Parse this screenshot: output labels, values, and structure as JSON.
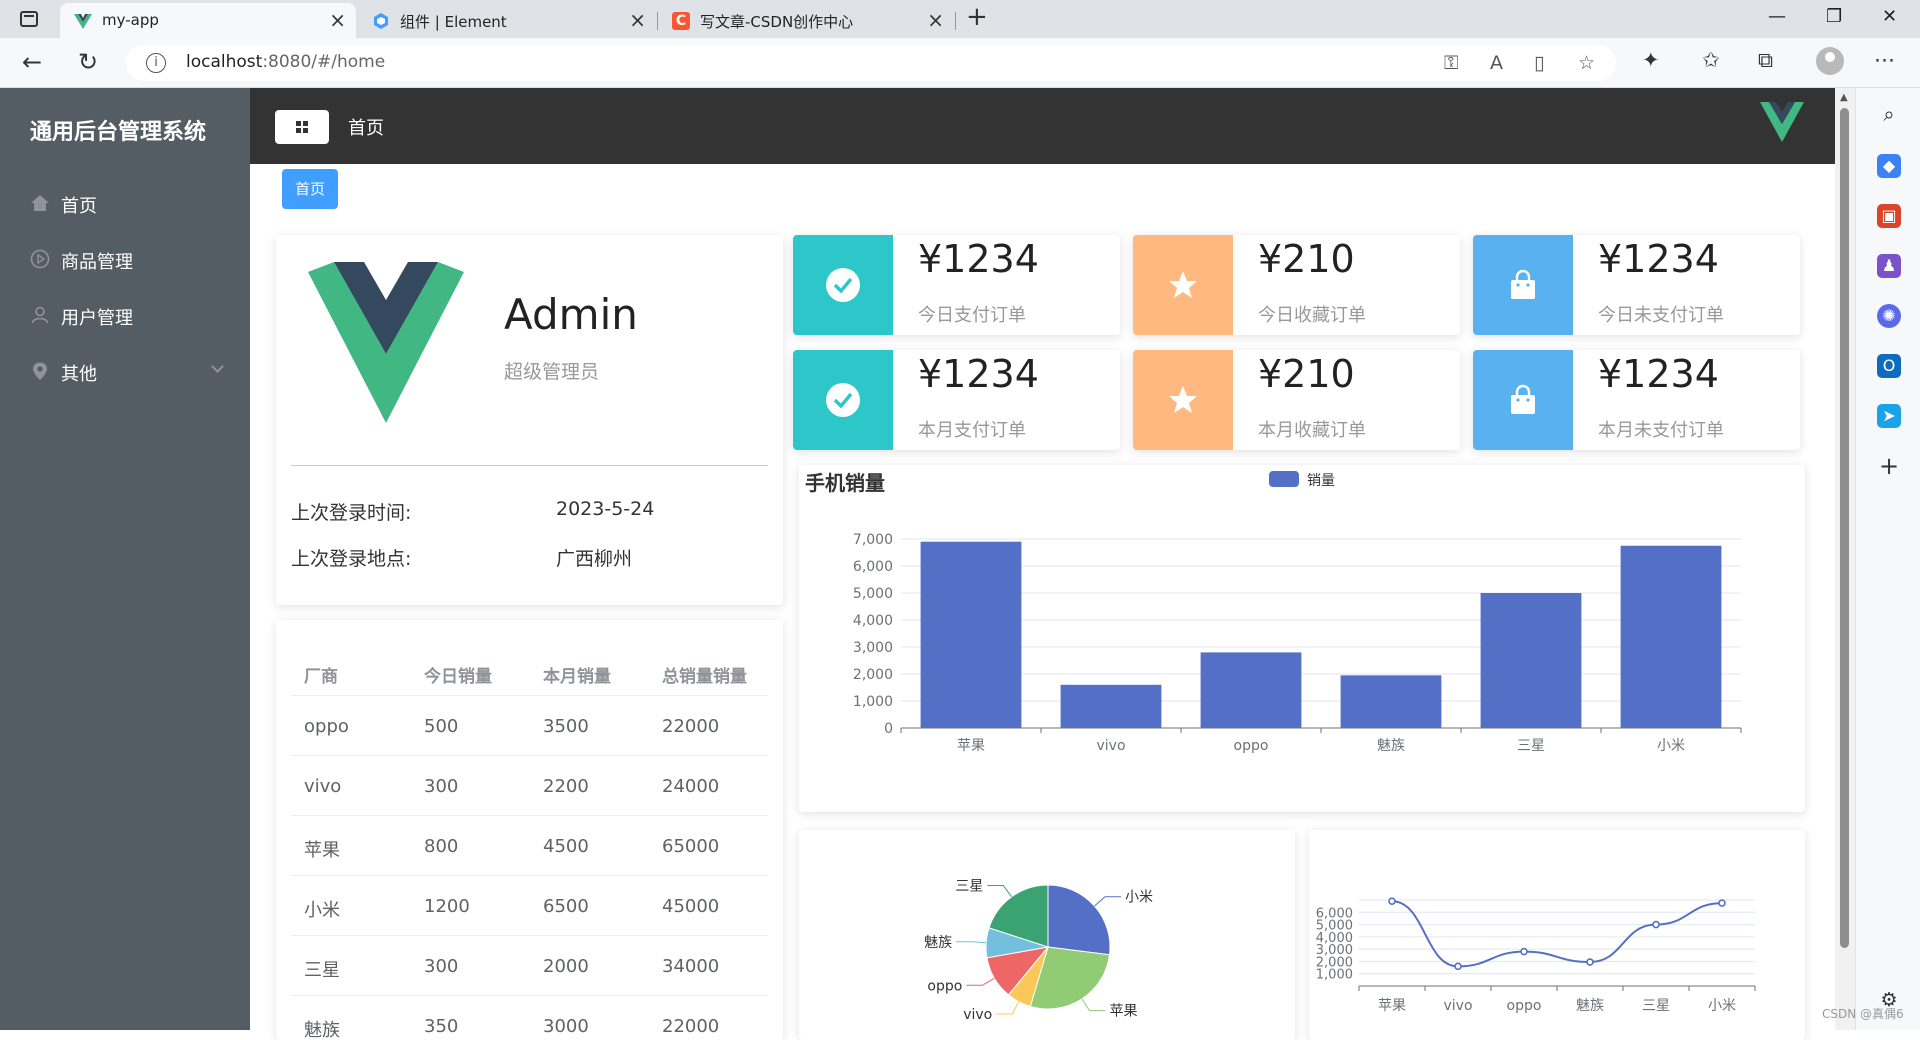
{
  "browser": {
    "tabs": [
      {
        "title": "my-app",
        "active": true
      },
      {
        "title": "组件 | Element",
        "active": false
      },
      {
        "title": "写文章-CSDN创作中心",
        "active": false
      }
    ],
    "url_host": "localhost",
    "url_rest": ":8080/#/home",
    "watermark": "CSDN @真偶6"
  },
  "sidebar": {
    "title": "通用后台管理系统",
    "items": [
      {
        "label": "首页",
        "icon": "home-icon"
      },
      {
        "label": "商品管理",
        "icon": "video-play-icon"
      },
      {
        "label": "用户管理",
        "icon": "user-icon"
      },
      {
        "label": "其他",
        "icon": "location-icon"
      }
    ]
  },
  "header": {
    "breadcrumb": "首页"
  },
  "tags": [
    "首页"
  ],
  "user": {
    "name": "Admin",
    "role": "超级管理员",
    "last_login_time_label": "上次登录时间:",
    "last_login_time": "2023-5-24",
    "last_login_place_label": "上次登录地点:",
    "last_login_place": "广西柳州"
  },
  "table": {
    "headers": [
      "厂商",
      "今日销量",
      "本月销量",
      "总销量销量"
    ],
    "rows": [
      [
        "oppo",
        "500",
        "3500",
        "22000"
      ],
      [
        "vivo",
        "300",
        "2200",
        "24000"
      ],
      [
        "苹果",
        "800",
        "4500",
        "65000"
      ],
      [
        "小米",
        "1200",
        "6500",
        "45000"
      ],
      [
        "三星",
        "300",
        "2000",
        "34000"
      ],
      [
        "魅族",
        "350",
        "3000",
        "22000"
      ]
    ]
  },
  "stats": [
    {
      "value": "¥1234",
      "label": "今日支付订单",
      "icon": "check-circle-icon",
      "color": "#2ec7c9"
    },
    {
      "value": "¥210",
      "label": "今日收藏订单",
      "icon": "star-icon",
      "color": "#ffb980"
    },
    {
      "value": "¥1234",
      "label": "今日未支付订单",
      "icon": "shopping-bag-icon",
      "color": "#5ab1ef"
    },
    {
      "value": "¥1234",
      "label": "本月支付订单",
      "icon": "check-circle-icon",
      "color": "#2ec7c9"
    },
    {
      "value": "¥210",
      "label": "本月收藏订单",
      "icon": "star-icon",
      "color": "#ffb980"
    },
    {
      "value": "¥1234",
      "label": "本月未支付订单",
      "icon": "shopping-bag-icon",
      "color": "#5ab1ef"
    }
  ],
  "chart_data": [
    {
      "type": "bar",
      "title": "手机销量",
      "legend": [
        "销量"
      ],
      "legend_position": "top-center",
      "categories": [
        "苹果",
        "vivo",
        "oppo",
        "魅族",
        "三星",
        "小米"
      ],
      "series": [
        {
          "name": "销量",
          "values": [
            6900,
            1600,
            2800,
            1950,
            5000,
            6750
          ]
        }
      ],
      "ylim": [
        0,
        7000
      ],
      "yticks": [
        "0",
        "1,000",
        "2,000",
        "3,000",
        "4,000",
        "5,000",
        "6,000",
        "7,000"
      ],
      "grid": true,
      "color": "#5470c6"
    },
    {
      "type": "pie",
      "labels": [
        "小米",
        "苹果",
        "vivo",
        "oppo",
        "魅族",
        "三星"
      ],
      "values": [
        6750,
        6900,
        1600,
        2800,
        1950,
        5000
      ],
      "colors": [
        "#5470c6",
        "#91cc75",
        "#fac858",
        "#ee6666",
        "#73c0de",
        "#3ba272"
      ]
    },
    {
      "type": "line",
      "categories": [
        "苹果",
        "vivo",
        "oppo",
        "魅族",
        "三星",
        "小米"
      ],
      "series": [
        {
          "values": [
            6900,
            1600,
            2800,
            1950,
            5000,
            6750
          ]
        }
      ],
      "ylim": [
        0,
        7000
      ],
      "yticks": [
        "1,000",
        "2,000",
        "3,000",
        "4,000",
        "5,000",
        "6,000"
      ],
      "grid": true,
      "smooth": true,
      "color": "#5470c6"
    }
  ]
}
